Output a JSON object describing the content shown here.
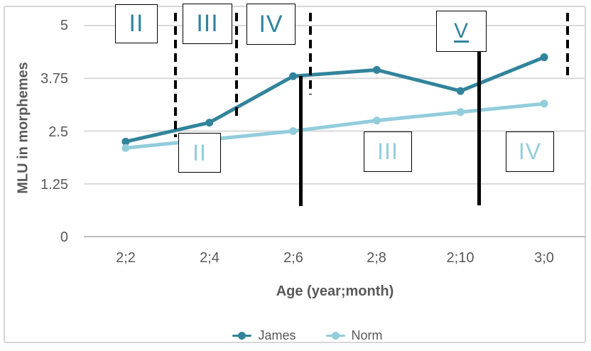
{
  "figure": {
    "background": "#ffffff",
    "frame_border_color": "#d6d6d6",
    "text_color": "#595959",
    "annotation_border_color": "#000000"
  },
  "chart_data": {
    "type": "line",
    "title": "",
    "xlabel": "Age (year;month)",
    "ylabel": "MLU in morphemes",
    "categories": [
      "2;2",
      "2;4",
      "2;6",
      "2;8",
      "2;10",
      "3;0"
    ],
    "y_ticks": [
      0,
      1.25,
      2.5,
      3.75,
      5
    ],
    "y_tick_labels": [
      "5",
      "3.75",
      "2.5",
      "1.25",
      "0"
    ],
    "ylim": [
      0,
      5
    ],
    "grid": "horizontal",
    "gridline_color": "#d9d9d9",
    "axis_line_color": "#c0c0c0",
    "legend_position": "bottom-center",
    "series": [
      {
        "name": "James",
        "color": "#31849b",
        "marker": "circle",
        "values": [
          2.25,
          2.7,
          3.8,
          3.95,
          3.45,
          4.25
        ]
      },
      {
        "name": "Norm",
        "color": "#92cddc",
        "marker": "circle",
        "values": [
          2.1,
          2.3,
          2.5,
          2.75,
          2.95,
          3.15
        ]
      }
    ],
    "annotations": {
      "james_stage_labels": [
        "II",
        "III",
        "IV",
        "V"
      ],
      "james_stage_color": "#31849b",
      "norm_stage_labels": [
        "II",
        "III",
        "IV"
      ],
      "norm_stage_color": "#92cddc",
      "boundary_line_color": "#000000"
    }
  }
}
